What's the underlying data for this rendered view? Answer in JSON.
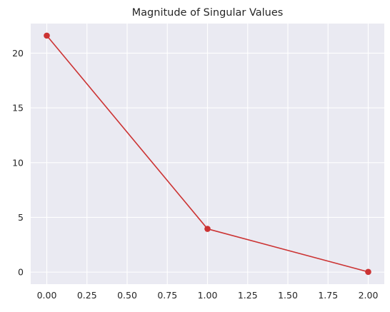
{
  "chart_data": {
    "type": "line",
    "title": "Magnitude of Singular Values",
    "xlabel": "",
    "ylabel": "",
    "x": [
      0,
      1,
      2
    ],
    "series": [
      {
        "values": [
          21.6,
          3.95,
          0.02
        ],
        "color": "#cc3333",
        "marker": "circle"
      }
    ],
    "xlim": [
      -0.1,
      2.1
    ],
    "ylim": [
      -1.1,
      22.7
    ],
    "x_ticks": [
      0,
      0.25,
      0.5,
      0.75,
      1.0,
      1.25,
      1.5,
      1.75,
      2.0
    ],
    "x_tick_labels": [
      "0.00",
      "0.25",
      "0.50",
      "0.75",
      "1.00",
      "1.25",
      "1.50",
      "1.75",
      "2.00"
    ],
    "y_ticks": [
      0,
      5,
      10,
      15,
      20
    ],
    "y_tick_labels": [
      "0",
      "5",
      "10",
      "15",
      "20"
    ],
    "grid": true,
    "legend": "none",
    "background_color": "#eaeaf2",
    "grid_color": "#ffffff"
  }
}
